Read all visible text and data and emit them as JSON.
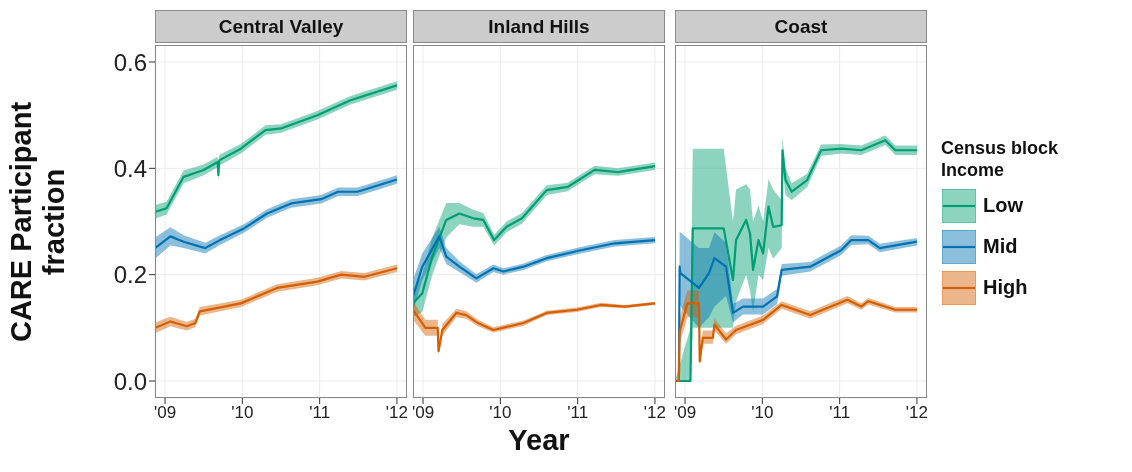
{
  "chart_data": [
    {
      "type": "line",
      "title": "Central Valley",
      "ylabel": "CARE Participant fraction",
      "xlim": [
        2008.87,
        2012.13
      ],
      "xticks": [
        {
          "value": 2009,
          "label": "'09"
        },
        {
          "value": 2010,
          "label": "'10"
        },
        {
          "value": 2011,
          "label": "'11"
        },
        {
          "value": 2012,
          "label": "'12"
        }
      ],
      "ylim": [
        -0.032,
        0.632
      ],
      "yticks": [
        {
          "value": 0,
          "label": "0.0"
        },
        0.2,
        0.4,
        0.6
      ],
      "grid": true,
      "series": [
        {
          "color": "#009e73",
          "x": [
            2008.87,
            2009.02,
            2009.24,
            2009.5,
            2009.68,
            2009.69,
            2009.7,
            2009.98,
            2010.3,
            2010.5,
            2010.97,
            2011.4,
            2012.0
          ],
          "values": [
            0.318,
            0.325,
            0.384,
            0.397,
            0.412,
            0.387,
            0.415,
            0.437,
            0.472,
            0.475,
            0.5,
            0.528,
            0.556
          ],
          "lower": [
            0.305,
            0.313,
            0.372,
            0.387,
            0.402,
            0.377,
            0.405,
            0.428,
            0.463,
            0.467,
            0.492,
            0.52,
            0.548
          ],
          "upper": [
            0.331,
            0.337,
            0.396,
            0.407,
            0.422,
            0.397,
            0.425,
            0.446,
            0.481,
            0.483,
            0.508,
            0.536,
            0.564
          ]
        },
        {
          "color": "#0072b2",
          "x": [
            2008.87,
            2009.07,
            2009.24,
            2009.52,
            2009.71,
            2010.02,
            2010.32,
            2010.63,
            2011.02,
            2011.24,
            2011.49,
            2012.0
          ],
          "values": [
            0.25,
            0.272,
            0.262,
            0.25,
            0.265,
            0.287,
            0.315,
            0.334,
            0.342,
            0.356,
            0.356,
            0.379
          ],
          "lower": [
            0.23,
            0.255,
            0.25,
            0.24,
            0.256,
            0.279,
            0.307,
            0.326,
            0.334,
            0.348,
            0.348,
            0.371
          ],
          "upper": [
            0.27,
            0.289,
            0.274,
            0.26,
            0.274,
            0.295,
            0.323,
            0.342,
            0.35,
            0.364,
            0.364,
            0.387
          ]
        },
        {
          "color": "#d55e00",
          "x": [
            2008.87,
            2009.07,
            2009.28,
            2009.39,
            2009.45,
            2009.98,
            2010.45,
            2010.97,
            2011.28,
            2011.58,
            2012.0
          ],
          "values": [
            0.1,
            0.112,
            0.103,
            0.109,
            0.131,
            0.146,
            0.175,
            0.187,
            0.2,
            0.196,
            0.212
          ],
          "lower": [
            0.09,
            0.103,
            0.095,
            0.101,
            0.123,
            0.139,
            0.168,
            0.18,
            0.193,
            0.189,
            0.205
          ],
          "upper": [
            0.11,
            0.121,
            0.111,
            0.117,
            0.139,
            0.153,
            0.182,
            0.194,
            0.207,
            0.203,
            0.219
          ]
        }
      ]
    },
    {
      "type": "line",
      "title": "Inland Hills",
      "xlabel": "Year",
      "tick_labels": "x",
      "xlim": [
        2008.87,
        2012.13
      ],
      "xticks": [
        {
          "value": 2009,
          "label": "'09"
        },
        {
          "value": 2010,
          "label": "'10"
        },
        {
          "value": 2011,
          "label": "'11"
        },
        {
          "value": 2012,
          "label": "'12"
        }
      ],
      "ylim": [
        -0.032,
        0.632
      ],
      "yticks": [
        0,
        0.2,
        0.4,
        0.6
      ],
      "grid": true,
      "series": [
        {
          "color": "#009e73",
          "x": [
            2008.87,
            2008.99,
            2009.12,
            2009.3,
            2009.47,
            2009.65,
            2009.78,
            2009.92,
            2010.08,
            2010.28,
            2010.6,
            2010.87,
            2011.22,
            2011.52,
            2012.0
          ],
          "values": [
            0.146,
            0.165,
            0.234,
            0.303,
            0.315,
            0.306,
            0.303,
            0.265,
            0.29,
            0.306,
            0.359,
            0.365,
            0.397,
            0.393,
            0.404
          ],
          "lower": [
            0.12,
            0.13,
            0.2,
            0.27,
            0.295,
            0.29,
            0.29,
            0.255,
            0.28,
            0.296,
            0.35,
            0.357,
            0.389,
            0.386,
            0.397
          ],
          "upper": [
            0.17,
            0.2,
            0.27,
            0.335,
            0.335,
            0.322,
            0.316,
            0.275,
            0.3,
            0.316,
            0.368,
            0.373,
            0.405,
            0.4,
            0.411
          ]
        },
        {
          "color": "#0072b2",
          "x": [
            2008.87,
            2008.99,
            2009.21,
            2009.3,
            2009.47,
            2009.69,
            2009.91,
            2010.04,
            2010.3,
            2010.6,
            2011.04,
            2011.48,
            2012.0
          ],
          "values": [
            0.159,
            0.215,
            0.272,
            0.234,
            0.215,
            0.193,
            0.212,
            0.206,
            0.215,
            0.231,
            0.246,
            0.259,
            0.265
          ],
          "lower": [
            0.13,
            0.19,
            0.25,
            0.22,
            0.205,
            0.185,
            0.205,
            0.2,
            0.209,
            0.225,
            0.24,
            0.253,
            0.259
          ],
          "upper": [
            0.19,
            0.24,
            0.29,
            0.25,
            0.225,
            0.201,
            0.219,
            0.212,
            0.221,
            0.237,
            0.252,
            0.265,
            0.271
          ]
        },
        {
          "color": "#d55e00",
          "x": [
            2008.87,
            2009.03,
            2009.19,
            2009.2,
            2009.25,
            2009.43,
            2009.56,
            2009.71,
            2009.91,
            2010.3,
            2010.6,
            2010.99,
            2011.3,
            2011.61,
            2012.0
          ],
          "values": [
            0.134,
            0.1,
            0.1,
            0.056,
            0.096,
            0.128,
            0.124,
            0.109,
            0.096,
            0.109,
            0.128,
            0.134,
            0.143,
            0.14,
            0.146
          ],
          "lower": [
            0.115,
            0.085,
            0.085,
            0.05,
            0.085,
            0.12,
            0.117,
            0.103,
            0.091,
            0.104,
            0.124,
            0.13,
            0.139,
            0.137,
            0.143
          ],
          "upper": [
            0.15,
            0.115,
            0.115,
            0.065,
            0.107,
            0.136,
            0.131,
            0.115,
            0.101,
            0.114,
            0.132,
            0.138,
            0.147,
            0.143,
            0.149
          ]
        }
      ]
    },
    {
      "type": "line",
      "title": "Coast",
      "legend": "right",
      "legend_title": "Census block Income",
      "tick_labels": "x",
      "xlim": [
        2008.87,
        2012.13
      ],
      "xticks": [
        {
          "value": 2009,
          "label": "'09"
        },
        {
          "value": 2010,
          "label": "'10"
        },
        {
          "value": 2011,
          "label": "'11"
        },
        {
          "value": 2012,
          "label": "'12"
        }
      ],
      "ylim": [
        -0.032,
        0.632
      ],
      "yticks": [
        0,
        0.2,
        0.4,
        0.6
      ],
      "grid": true,
      "series": [
        {
          "name": "Low",
          "color": "#009e73",
          "x": [
            2008.87,
            2009.07,
            2009.1,
            2009.5,
            2009.62,
            2009.66,
            2009.79,
            2009.84,
            2009.88,
            2009.95,
            2010.01,
            2010.08,
            2010.14,
            2010.25,
            2010.26,
            2010.3,
            2010.38,
            2010.58,
            2010.76,
            2011.02,
            2011.28,
            2011.59,
            2011.72,
            2012.0
          ],
          "values": [
            0,
            0,
            0.287,
            0.287,
            0.19,
            0.265,
            0.303,
            0.278,
            0.209,
            0.265,
            0.24,
            0.328,
            0.29,
            0.293,
            0.434,
            0.378,
            0.356,
            0.378,
            0.434,
            0.437,
            0.434,
            0.453,
            0.434,
            0.434
          ],
          "lower": [
            0,
            0,
            0.1,
            0.1,
            0.1,
            0.15,
            0.2,
            0.17,
            0.13,
            0.2,
            0.19,
            0.25,
            0.23,
            0.25,
            0.4,
            0.35,
            0.34,
            0.365,
            0.423,
            0.428,
            0.425,
            0.444,
            0.425,
            0.425
          ],
          "upper": [
            0,
            0.1,
            0.437,
            0.437,
            0.3,
            0.36,
            0.37,
            0.36,
            0.3,
            0.33,
            0.3,
            0.38,
            0.36,
            0.34,
            0.46,
            0.4,
            0.372,
            0.39,
            0.445,
            0.446,
            0.443,
            0.462,
            0.443,
            0.443
          ]
        },
        {
          "name": "Mid",
          "color": "#0072b2",
          "x": [
            2008.87,
            2008.92,
            2008.93,
            2008.94,
            2009.18,
            2009.31,
            2009.38,
            2009.53,
            2009.62,
            2009.75,
            2010.01,
            2010.19,
            2010.25,
            2010.62,
            2011.02,
            2011.15,
            2011.37,
            2011.52,
            2012.0
          ],
          "values": [
            0,
            0,
            0.215,
            0.203,
            0.175,
            0.203,
            0.231,
            0.215,
            0.128,
            0.14,
            0.14,
            0.159,
            0.209,
            0.215,
            0.246,
            0.265,
            0.265,
            0.25,
            0.262
          ],
          "lower": [
            0,
            0,
            0.15,
            0.14,
            0.1,
            0.12,
            0.14,
            0.16,
            0.11,
            0.125,
            0.125,
            0.145,
            0.198,
            0.206,
            0.237,
            0.256,
            0.257,
            0.242,
            0.255
          ],
          "upper": [
            0,
            0,
            0.28,
            0.28,
            0.25,
            0.25,
            0.28,
            0.26,
            0.145,
            0.155,
            0.155,
            0.173,
            0.22,
            0.224,
            0.255,
            0.274,
            0.273,
            0.258,
            0.269
          ]
        },
        {
          "name": "High",
          "color": "#d55e00",
          "x": [
            2008.87,
            2008.92,
            2008.93,
            2009.03,
            2009.18,
            2009.19,
            2009.23,
            2009.36,
            2009.38,
            2009.53,
            2009.66,
            2010.01,
            2010.25,
            2010.62,
            2011.1,
            2011.28,
            2011.37,
            2011.72,
            2012.0
          ],
          "values": [
            0,
            0,
            0.093,
            0.146,
            0.146,
            0.037,
            0.081,
            0.081,
            0.106,
            0.078,
            0.096,
            0.115,
            0.143,
            0.124,
            0.153,
            0.14,
            0.15,
            0.134,
            0.134
          ],
          "lower": [
            0,
            0,
            0.07,
            0.12,
            0.12,
            0.03,
            0.07,
            0.07,
            0.095,
            0.07,
            0.088,
            0.107,
            0.136,
            0.117,
            0.146,
            0.134,
            0.144,
            0.129,
            0.129
          ],
          "upper": [
            0,
            0,
            0.12,
            0.17,
            0.17,
            0.05,
            0.095,
            0.095,
            0.117,
            0.09,
            0.104,
            0.123,
            0.15,
            0.131,
            0.16,
            0.146,
            0.156,
            0.139,
            0.139
          ]
        }
      ]
    }
  ]
}
